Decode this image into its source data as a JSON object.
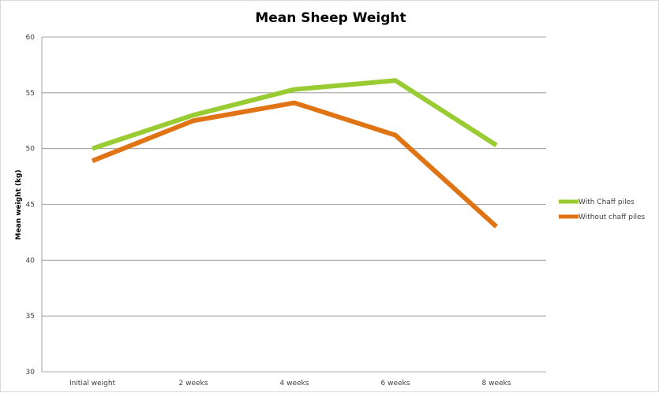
{
  "chart_data": {
    "type": "line",
    "title": "Mean Sheep Weight",
    "xlabel": "",
    "ylabel": "Mean weight (kg)",
    "categories": [
      "Initial weight",
      "2 weeks",
      "4 weeks",
      "6 weeks",
      "8 weeks"
    ],
    "ylim": [
      30,
      60
    ],
    "yticks": [
      "30",
      "35",
      "40",
      "45",
      "50",
      "55",
      "60"
    ],
    "grid": true,
    "legend_position": "right",
    "series": [
      {
        "name": "With Chaff piles",
        "color": "#99cc33",
        "values": [
          50.0,
          53.0,
          55.3,
          56.1,
          50.3
        ]
      },
      {
        "name": "Without chaff piles",
        "color": "#e07415",
        "values": [
          48.9,
          52.5,
          54.1,
          51.2,
          43.0
        ]
      }
    ]
  }
}
